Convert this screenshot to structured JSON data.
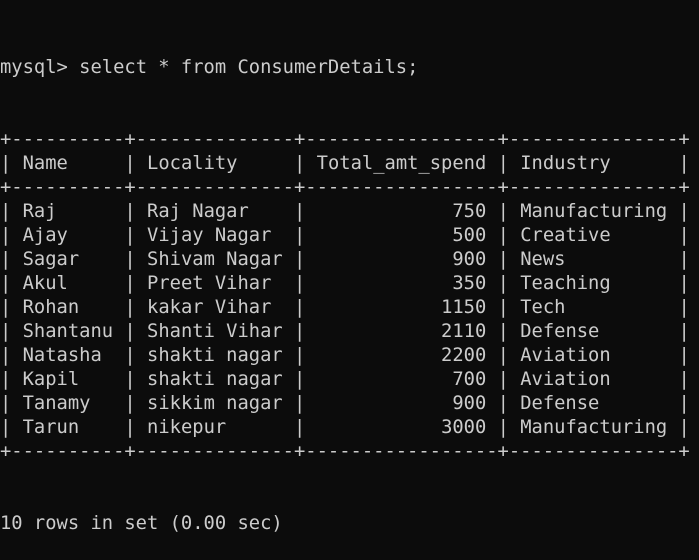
{
  "terminal": {
    "prompt": "mysql> ",
    "command": "select * from ConsumerDetails;",
    "footer": "10 rows in set (0.00 sec)"
  },
  "table": {
    "columns": [
      "Name",
      "Locality",
      "Total_amt_spend",
      "Industry"
    ],
    "column_align": [
      "left",
      "left",
      "right",
      "left"
    ],
    "rows": [
      [
        "Raj",
        "Raj Nagar",
        "750",
        "Manufacturing"
      ],
      [
        "Ajay",
        "Vijay Nagar",
        "500",
        "Creative"
      ],
      [
        "Sagar",
        "Shivam Nagar",
        "900",
        "News"
      ],
      [
        "Akul",
        "Preet Vihar",
        "350",
        "Teaching"
      ],
      [
        "Rohan",
        "kakar Vihar",
        "1150",
        "Tech"
      ],
      [
        "Shantanu",
        "Shanti Vihar",
        "2110",
        "Defense"
      ],
      [
        "Natasha",
        "shakti nagar",
        "2200",
        "Aviation"
      ],
      [
        "Kapil",
        "shakti nagar",
        "700",
        "Aviation"
      ],
      [
        "Tanamy",
        "sikkim nagar",
        "900",
        "Defense"
      ],
      [
        "Tarun",
        "nikepur",
        "3000",
        "Manufacturing"
      ]
    ]
  },
  "colors": {
    "background": "#0c0c0c",
    "text": "#cccccc"
  }
}
